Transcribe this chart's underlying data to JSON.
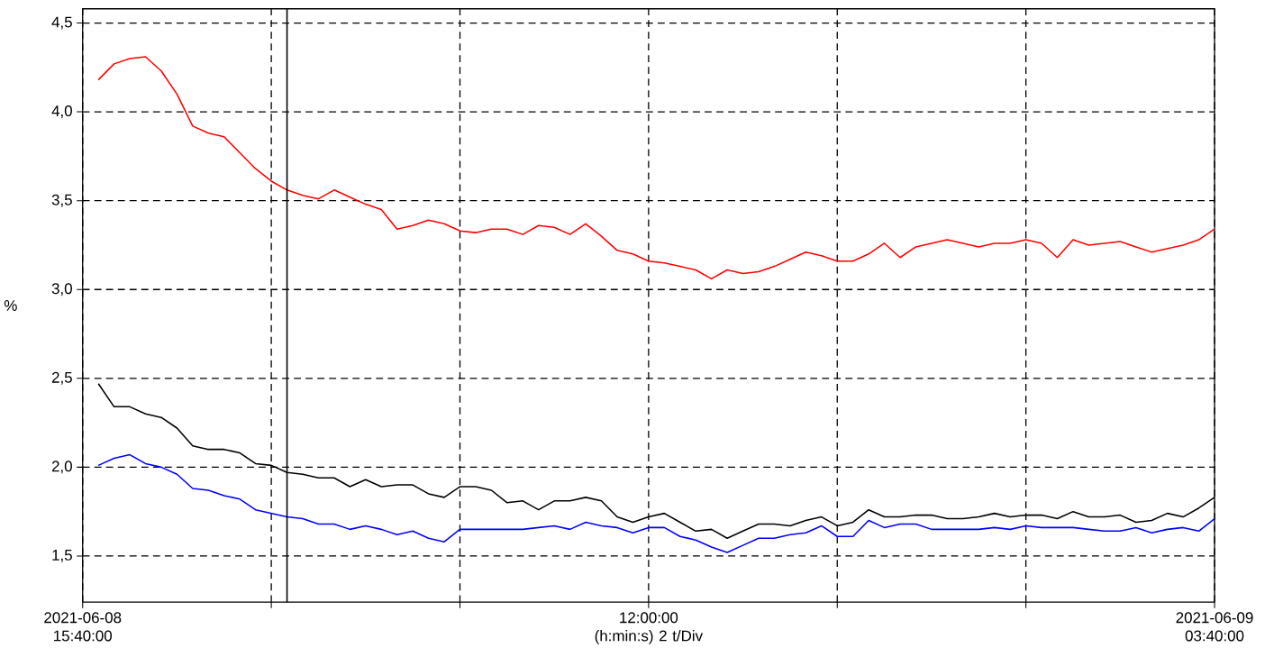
{
  "chart_data": {
    "type": "line",
    "ylabel": "%",
    "x": [
      "2021-06-08T15:50",
      "2021-06-08T16:00",
      "2021-06-08T16:10",
      "2021-06-08T16:20",
      "2021-06-08T16:30",
      "2021-06-08T16:40",
      "2021-06-08T16:50",
      "2021-06-08T17:00",
      "2021-06-08T17:10",
      "2021-06-08T17:20",
      "2021-06-08T17:30",
      "2021-06-08T17:40",
      "2021-06-08T17:50",
      "2021-06-08T18:00",
      "2021-06-08T18:10",
      "2021-06-08T18:20",
      "2021-06-08T18:30",
      "2021-06-08T18:40",
      "2021-06-08T18:50",
      "2021-06-08T19:00",
      "2021-06-08T19:10",
      "2021-06-08T19:20",
      "2021-06-08T19:30",
      "2021-06-08T19:40",
      "2021-06-08T19:50",
      "2021-06-08T20:00",
      "2021-06-08T20:10",
      "2021-06-08T20:20",
      "2021-06-08T20:30",
      "2021-06-08T20:40",
      "2021-06-08T20:50",
      "2021-06-08T21:00",
      "2021-06-08T21:10",
      "2021-06-08T21:20",
      "2021-06-08T21:30",
      "2021-06-08T21:40",
      "2021-06-08T21:50",
      "2021-06-08T22:00",
      "2021-06-08T22:10",
      "2021-06-08T22:20",
      "2021-06-08T22:30",
      "2021-06-08T22:40",
      "2021-06-08T22:50",
      "2021-06-08T23:00",
      "2021-06-08T23:10",
      "2021-06-08T23:20",
      "2021-06-08T23:30",
      "2021-06-08T23:40",
      "2021-06-08T23:50",
      "2021-06-09T00:00",
      "2021-06-09T00:10",
      "2021-06-09T00:20",
      "2021-06-09T00:30",
      "2021-06-09T00:40",
      "2021-06-09T00:50",
      "2021-06-09T01:00",
      "2021-06-09T01:10",
      "2021-06-09T01:20",
      "2021-06-09T01:30",
      "2021-06-09T01:40",
      "2021-06-09T01:50",
      "2021-06-09T02:00",
      "2021-06-09T02:10",
      "2021-06-09T02:20",
      "2021-06-09T02:30",
      "2021-06-09T02:40",
      "2021-06-09T02:50",
      "2021-06-09T03:00",
      "2021-06-09T03:10",
      "2021-06-09T03:20",
      "2021-06-09T03:30",
      "2021-06-09T03:40"
    ],
    "series": [
      {
        "color": "#ff0000",
        "values": [
          4.18,
          4.27,
          4.3,
          4.31,
          4.23,
          4.1,
          3.92,
          3.88,
          3.86,
          3.77,
          3.68,
          3.61,
          3.56,
          3.53,
          3.51,
          3.56,
          3.52,
          3.48,
          3.45,
          3.34,
          3.36,
          3.39,
          3.37,
          3.33,
          3.32,
          3.34,
          3.34,
          3.31,
          3.36,
          3.35,
          3.31,
          3.37,
          3.3,
          3.22,
          3.2,
          3.16,
          3.15,
          3.13,
          3.11,
          3.06,
          3.11,
          3.09,
          3.1,
          3.13,
          3.17,
          3.21,
          3.19,
          3.16,
          3.16,
          3.2,
          3.26,
          3.18,
          3.24,
          3.26,
          3.28,
          3.26,
          3.24,
          3.26,
          3.26,
          3.28,
          3.26,
          3.18,
          3.28,
          3.25,
          3.26,
          3.27,
          3.24,
          3.21,
          3.23,
          3.25,
          3.28,
          3.34
        ]
      },
      {
        "color": "#000000",
        "values": [
          2.47,
          2.34,
          2.34,
          2.3,
          2.28,
          2.22,
          2.12,
          2.1,
          2.1,
          2.08,
          2.02,
          2.01,
          1.97,
          1.96,
          1.94,
          1.94,
          1.89,
          1.93,
          1.89,
          1.9,
          1.9,
          1.85,
          1.83,
          1.89,
          1.89,
          1.87,
          1.8,
          1.81,
          1.76,
          1.81,
          1.81,
          1.83,
          1.81,
          1.72,
          1.69,
          1.72,
          1.74,
          1.69,
          1.64,
          1.65,
          1.6,
          1.64,
          1.68,
          1.68,
          1.67,
          1.7,
          1.72,
          1.67,
          1.69,
          1.76,
          1.72,
          1.72,
          1.73,
          1.73,
          1.71,
          1.71,
          1.72,
          1.74,
          1.72,
          1.73,
          1.73,
          1.71,
          1.75,
          1.72,
          1.72,
          1.73,
          1.69,
          1.7,
          1.74,
          1.72,
          1.77,
          1.83
        ]
      },
      {
        "color": "#0000ff",
        "values": [
          2.01,
          2.05,
          2.07,
          2.02,
          2.0,
          1.96,
          1.88,
          1.87,
          1.84,
          1.82,
          1.76,
          1.74,
          1.72,
          1.71,
          1.68,
          1.68,
          1.65,
          1.67,
          1.65,
          1.62,
          1.64,
          1.6,
          1.58,
          1.65,
          1.65,
          1.65,
          1.65,
          1.65,
          1.66,
          1.67,
          1.65,
          1.69,
          1.67,
          1.66,
          1.63,
          1.66,
          1.66,
          1.61,
          1.59,
          1.55,
          1.52,
          1.56,
          1.6,
          1.6,
          1.62,
          1.63,
          1.67,
          1.61,
          1.61,
          1.7,
          1.66,
          1.68,
          1.68,
          1.65,
          1.65,
          1.65,
          1.65,
          1.66,
          1.65,
          1.67,
          1.66,
          1.66,
          1.66,
          1.65,
          1.64,
          1.64,
          1.66,
          1.63,
          1.65,
          1.66,
          1.64,
          1.71
        ]
      }
    ],
    "xlim": [
      "2021-06-08T15:40",
      "2021-06-09T03:40"
    ],
    "xticks": [
      {
        "value": "2021-06-08T15:40",
        "label": "2021-06-08 15:40:00"
      },
      {
        "value": "2021-06-08T17:40",
        "label": null
      },
      {
        "value": "2021-06-08T19:40",
        "label": null
      },
      {
        "value": "2021-06-08T21:40",
        "label": "12:00:00 (h:min:s) 2 t/Div"
      },
      {
        "value": "2021-06-08T23:40",
        "label": null
      },
      {
        "value": "2021-06-09T01:40",
        "label": null
      },
      {
        "value": "2021-06-09T03:40",
        "label": "2021-06-09 03:40:00"
      }
    ],
    "ylim": [
      1.24,
      4.58
    ],
    "yticks": [
      {
        "value": 1.5,
        "label": "1,5"
      },
      {
        "value": 2.0,
        "label": "2,0"
      },
      {
        "value": 2.5,
        "label": "2,5"
      },
      {
        "value": 3.0,
        "label": "3,0"
      },
      {
        "value": 3.5,
        "label": "3,5"
      },
      {
        "value": 4.0,
        "label": "4,0"
      },
      {
        "value": 4.5,
        "label": "4,5"
      }
    ],
    "ref_lines": [
      {
        "axis": "x",
        "value": "2021-06-08T17:50",
        "color": "#000000",
        "line_style": "solid"
      }
    ],
    "grid": true,
    "marker": "none",
    "line_style": "solid"
  }
}
